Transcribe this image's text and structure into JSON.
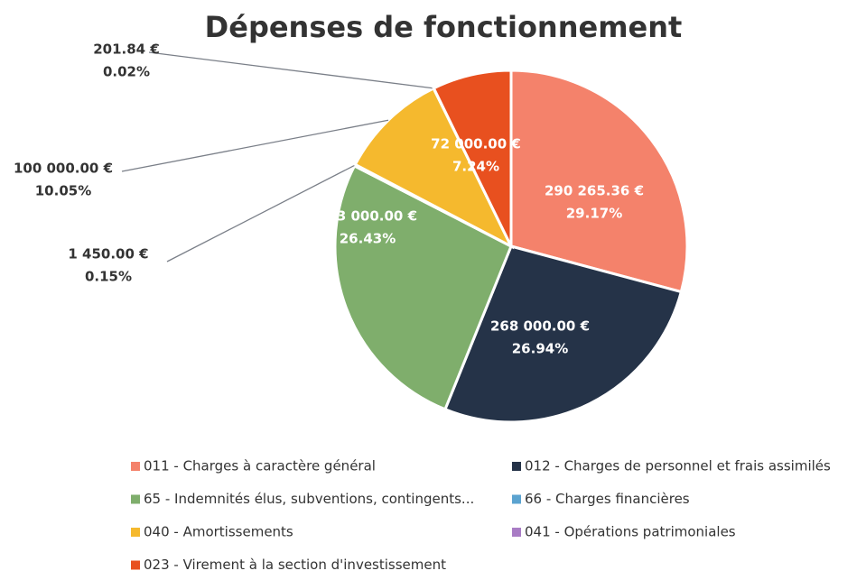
{
  "chart_data": {
    "type": "pie",
    "title": "Dépenses de fonctionnement",
    "categories": [
      "011 - Charges à caractère général",
      "012 - Charges de personnel et frais assimilés",
      "65 - Indemnités élus, subventions, contingents...",
      "66 - Charges financières",
      "040 - Amortissements",
      "041 - Opérations patrimoniales",
      "023 - Virement à la section d'investissement"
    ],
    "values": [
      290265.36,
      268000,
      263000,
      1450,
      100000,
      201.84,
      72000
    ],
    "value_labels": [
      "290 265.36 €",
      "268 000.00 €",
      "263 000.00 €",
      "1 450.00 €",
      "100 000.00 €",
      "201.84 €",
      "72 000.00 €"
    ],
    "percentages": [
      29.17,
      26.94,
      26.43,
      0.15,
      10.05,
      0.02,
      7.24
    ],
    "percentage_labels": [
      "29.17%",
      "26.94%",
      "26.43%",
      "0.15%",
      "10.05%",
      "0.02%",
      "7.24%"
    ],
    "colors": [
      "#f4826b",
      "#253348",
      "#7fae6c",
      "#5ba3d0",
      "#f5b92e",
      "#a97cc5",
      "#e8501f"
    ],
    "legend": "bottom"
  }
}
